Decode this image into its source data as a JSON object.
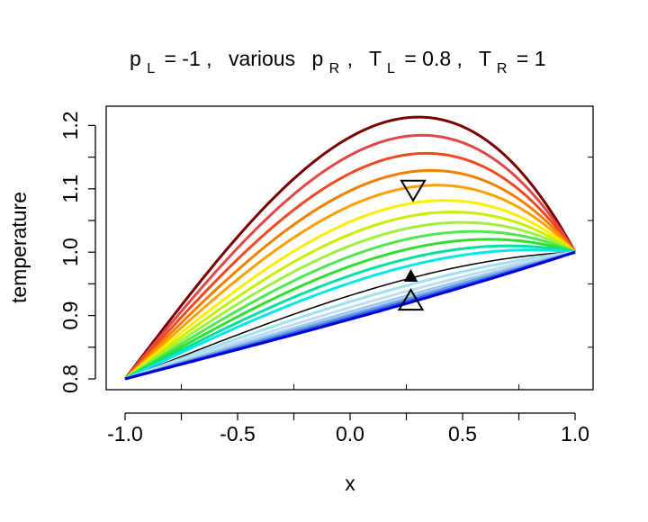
{
  "chart_data": {
    "type": "line",
    "title": {
      "p_symbol": "p",
      "p_left_sub": "L",
      "p_left_value": "= -1 ,",
      "various": "various",
      "p_right_sub": "R",
      "p_right_tail": ",",
      "t_symbol": "T",
      "t_left_sub": "L",
      "t_left_value": "= 0.8 ,",
      "t_right_sub": "R",
      "t_right_value": "= 1"
    },
    "xlabel": "x",
    "ylabel": "temperature",
    "xlim": [
      -1.0,
      1.0
    ],
    "ylim": [
      0.8,
      1.22
    ],
    "x_ticks": [
      "-1.0",
      "-0.5",
      "0.0",
      "0.5",
      "1.0"
    ],
    "y_ticks": [
      "0.8",
      "0.9",
      "1.0",
      "1.1",
      "1.2"
    ],
    "grid": false,
    "curve_model": "T(x) = 0.9 + 0.1x + A(1 - x^2)(1 + 0.35x)",
    "series": [
      {
        "peak_x": 0.28,
        "peak_y": 1.213,
        "color": "#7a0000"
      },
      {
        "peak_x": 0.28,
        "peak_y": 1.184,
        "color": "#e04848"
      },
      {
        "peak_x": 0.28,
        "peak_y": 1.155,
        "color": "#f04820"
      },
      {
        "peak_x": 0.3,
        "peak_y": 1.128,
        "color": "#f08000"
      },
      {
        "peak_x": 0.3,
        "peak_y": 1.104,
        "color": "#ffa000"
      },
      {
        "peak_x": 0.33,
        "peak_y": 1.08,
        "color": "#ffee00"
      },
      {
        "peak_x": 0.37,
        "peak_y": 1.062,
        "color": "#c8ee00"
      },
      {
        "peak_x": 0.42,
        "peak_y": 1.046,
        "color": "#a0f040"
      },
      {
        "peak_x": 0.48,
        "peak_y": 1.032,
        "color": "#50e850"
      },
      {
        "peak_x": 0.57,
        "peak_y": 1.02,
        "color": "#30e030"
      },
      {
        "peak_x": 0.7,
        "peak_y": 1.01,
        "color": "#00e0a0"
      },
      {
        "peak_x": 0.28,
        "peak_y": 0.98,
        "color": "#00e8e8"
      },
      {
        "peak_x": 0.28,
        "peak_y": 0.96,
        "color": "#000000"
      },
      {
        "peak_x": 0.28,
        "peak_y": 0.95,
        "color": "#a0e0f0"
      },
      {
        "peak_x": 0.28,
        "peak_y": 0.941,
        "color": "#c0dcf0"
      },
      {
        "peak_x": 0.28,
        "peak_y": 0.934,
        "color": "#9fc8f0"
      },
      {
        "peak_x": 0.28,
        "peak_y": 0.929,
        "color": "#6a9fe8"
      },
      {
        "peak_x": 0.28,
        "peak_y": 0.925,
        "color": "#3060e0"
      },
      {
        "peak_x": 0.28,
        "peak_y": 0.922,
        "color": "#0000d8"
      }
    ],
    "markers": [
      {
        "shape": "triangle-down-open",
        "x": 0.28,
        "y": 1.1
      },
      {
        "shape": "triangle-up-filled",
        "x": 0.27,
        "y": 0.962
      },
      {
        "shape": "triangle-up-open",
        "x": 0.27,
        "y": 0.922
      }
    ]
  }
}
